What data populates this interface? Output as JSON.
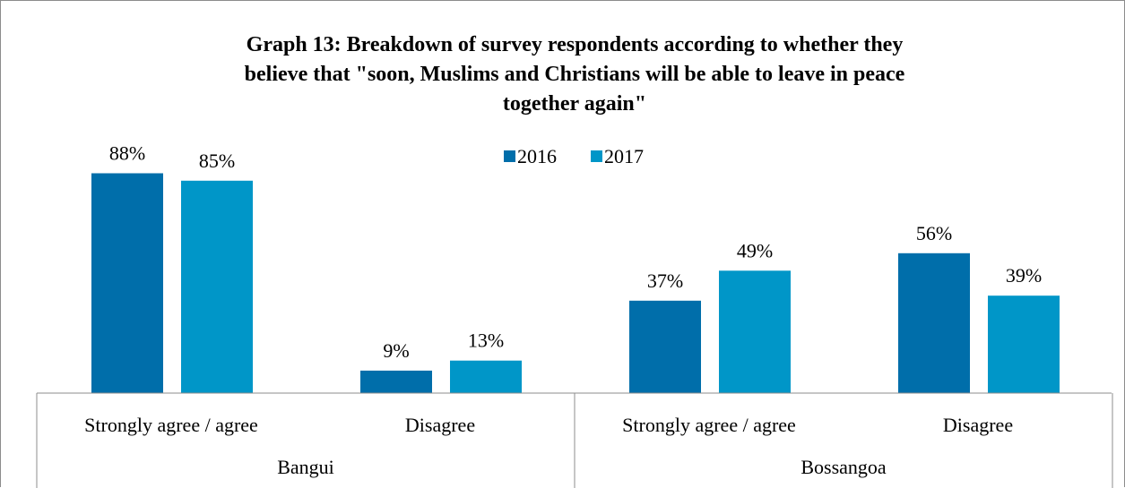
{
  "chart_data": {
    "type": "bar",
    "title_lines": [
      "Graph 13: Breakdown of survey respondents according to whether they",
      "believe that \"soon, Muslims and Christians will be able to leave in peace",
      "together again\""
    ],
    "groups": [
      {
        "name": "Bangui",
        "categories": [
          "Strongly agree / agree",
          "Disagree"
        ]
      },
      {
        "name": "Bossangoa",
        "categories": [
          "Strongly agree / agree",
          "Disagree"
        ]
      }
    ],
    "categories": [
      "Strongly agree / agree",
      "Disagree",
      "Strongly agree / agree",
      "Disagree"
    ],
    "series": [
      {
        "name": "2016",
        "color": "#006eaa",
        "values": [
          88,
          9,
          37,
          56
        ],
        "labels": [
          "88%",
          "9%",
          "37%",
          "56%"
        ]
      },
      {
        "name": "2017",
        "color": "#0096c8",
        "values": [
          85,
          13,
          49,
          39
        ],
        "labels": [
          "85%",
          "13%",
          "49%",
          "39%"
        ]
      }
    ],
    "value_unit": "%",
    "ylim": [
      0,
      100
    ],
    "legend_position": "top-center",
    "grid": false
  }
}
